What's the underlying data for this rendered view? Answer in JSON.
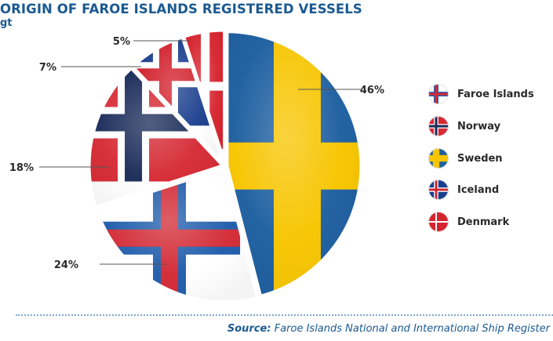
{
  "chart_data": {
    "type": "pie",
    "title": "ORIGIN OF FAROE ISLANDS REGISTERED VESSELS",
    "unit": "gt",
    "categories": [
      "Faroe Islands",
      "Norway",
      "Sweden",
      "Iceland",
      "Denmark"
    ],
    "slices": [
      {
        "name": "Sweden",
        "value": 46,
        "label": "46%"
      },
      {
        "name": "Faroe Islands",
        "value": 24,
        "label": "24%"
      },
      {
        "name": "Norway",
        "value": 18,
        "label": "18%"
      },
      {
        "name": "Iceland",
        "value": 7,
        "label": "7%"
      },
      {
        "name": "Denmark",
        "value": 5,
        "label": "5%"
      }
    ],
    "legend": {
      "placement": "right",
      "items": [
        {
          "label": "Faroe Islands",
          "flag": "faroe-islands"
        },
        {
          "label": "Norway",
          "flag": "norway"
        },
        {
          "label": "Sweden",
          "flag": "sweden"
        },
        {
          "label": "Iceland",
          "flag": "iceland"
        },
        {
          "label": "Denmark",
          "flag": "denmark"
        }
      ]
    }
  },
  "source": {
    "label": "Source:",
    "text": "Faroe Islands National and International Ship Register"
  },
  "colors": {
    "title": "#1b5a91",
    "sweden_blue": "#1e5fa0",
    "sweden_yellow": "#f7c500",
    "red": "#d62b35",
    "faroe_red": "#d32a35",
    "faroe_blue": "#1f5cab",
    "norway_blue": "#1a2b59",
    "iceland_blue": "#1b3f8e",
    "iceland_red": "#d2202c",
    "denmark_red": "#d6242f",
    "white": "#ffffff"
  }
}
